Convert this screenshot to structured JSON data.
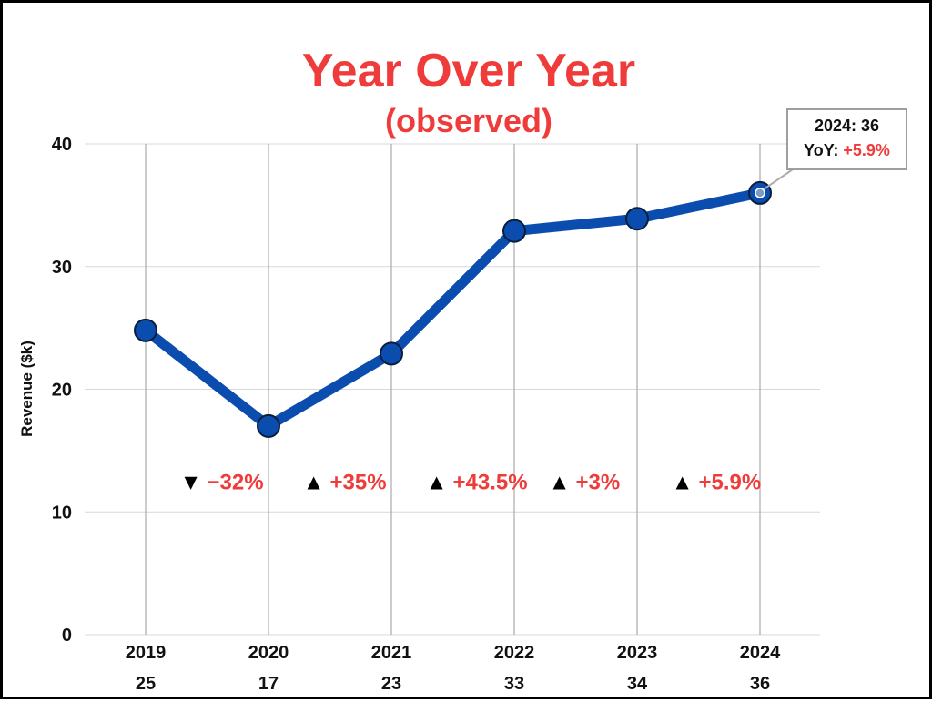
{
  "colors": {
    "title": "#F03B3B",
    "line": "#0B4DAE",
    "marker_stroke": "#0A1E3C",
    "grid": "#D9D9D9",
    "vgrid": "#ABABAB",
    "accent_red": "#F03B3B",
    "arrow": "#000000",
    "highlight_marker": "#7F9CC6"
  },
  "chart_data": {
    "type": "line",
    "title": "Year Over Year",
    "subtitle": "(observed)",
    "ylabel": "Revenue ($k)",
    "xlabel": "",
    "ylim": [
      0,
      40
    ],
    "yticks": [
      0,
      10,
      20,
      30,
      40
    ],
    "grid": true,
    "categories": [
      "2019",
      "2020",
      "2021",
      "2022",
      "2023",
      "2024"
    ],
    "value_labels": [
      "25",
      "17",
      "23",
      "33",
      "34",
      "36"
    ],
    "series": [
      {
        "values": [
          24.8,
          17.0,
          22.9,
          32.9,
          33.9,
          36.0
        ]
      }
    ],
    "changes": [
      {
        "direction": "down",
        "arrow": "▼",
        "label": "−32%"
      },
      {
        "direction": "up",
        "arrow": "▲",
        "label": "+35%"
      },
      {
        "direction": "up",
        "arrow": "▲",
        "label": "+43.5%"
      },
      {
        "direction": "up",
        "arrow": "▲",
        "label": "+3%"
      },
      {
        "direction": "up",
        "arrow": "▲",
        "label": "+5.9%"
      }
    ],
    "change_level": 12.5,
    "annotation": {
      "index": 5,
      "line1": "2024: 36",
      "prefix": "YoY: ",
      "value": "+5.9%"
    }
  }
}
